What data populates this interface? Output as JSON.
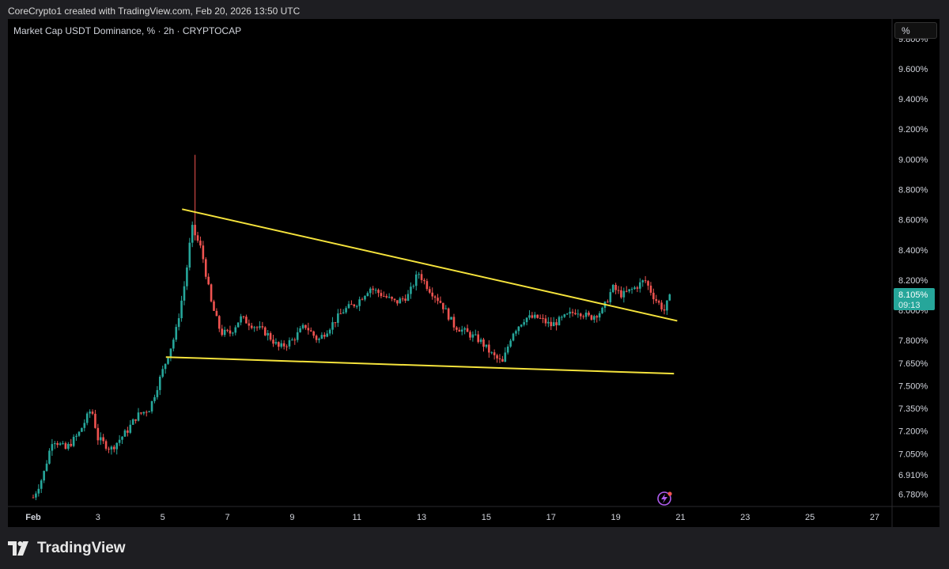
{
  "caption": "CoreCrypto1 created with TradingView.com, Feb 20, 2026 13:50 UTC",
  "symbol_title": "Market Cap USDT Dominance, % · 2h · CRYPTOCAP",
  "unit_button": "%",
  "brand": "TradingView",
  "icons": [
    "tradingview-logo-icon",
    "lightning-icon"
  ],
  "colors": {
    "up": "#26a69a",
    "down": "#ef5350",
    "trendline": "#f5e33c",
    "price_tag": "#26a69a",
    "background": "#000000"
  },
  "price_tag": {
    "price": "8.105%",
    "countdown": "09:13"
  },
  "chart_data": {
    "type": "candlestick",
    "title": "Market Cap USDT Dominance, % · 2h · CRYPTOCAP",
    "ylabel": "%",
    "ylim": [
      6.7,
      9.93
    ],
    "xlim": [
      1.0,
      28.0
    ],
    "y_ticks": [
      "9.800%",
      "9.600%",
      "9.400%",
      "9.200%",
      "9.000%",
      "8.800%",
      "8.600%",
      "8.400%",
      "8.200%",
      "8.000%",
      "7.800%",
      "7.650%",
      "7.500%",
      "7.350%",
      "7.200%",
      "7.050%",
      "6.910%",
      "6.780%"
    ],
    "y_tick_values": [
      9.8,
      9.6,
      9.4,
      9.2,
      9.0,
      8.8,
      8.6,
      8.4,
      8.2,
      8.0,
      7.8,
      7.65,
      7.5,
      7.35,
      7.2,
      7.05,
      6.91,
      6.78
    ],
    "x_ticks": [
      "Feb",
      "3",
      "5",
      "7",
      "9",
      "11",
      "13",
      "15",
      "17",
      "19",
      "21",
      "23",
      "25",
      "27"
    ],
    "x_tick_values": [
      1,
      3,
      5,
      7,
      9,
      11,
      13,
      15,
      17,
      19,
      21,
      23,
      25,
      27
    ],
    "notable": {
      "spike_high": 9.03,
      "last_price": 8.105
    },
    "trendlines": [
      {
        "name": "upper",
        "start": [
          5.6,
          8.67
        ],
        "end": [
          20.9,
          7.93
        ]
      },
      {
        "name": "lower",
        "start": [
          5.1,
          7.69
        ],
        "end": [
          20.8,
          7.58
        ]
      }
    ],
    "close_path": [
      [
        1.0,
        6.76
      ],
      [
        1.3,
        6.9
      ],
      [
        1.6,
        7.15
      ],
      [
        2.0,
        7.08
      ],
      [
        2.4,
        7.18
      ],
      [
        2.8,
        7.35
      ],
      [
        3.0,
        7.15
      ],
      [
        3.4,
        7.08
      ],
      [
        3.9,
        7.2
      ],
      [
        4.2,
        7.3
      ],
      [
        4.6,
        7.35
      ],
      [
        5.0,
        7.6
      ],
      [
        5.4,
        7.85
      ],
      [
        5.7,
        8.2
      ],
      [
        5.9,
        8.55
      ],
      [
        6.2,
        8.4
      ],
      [
        6.5,
        8.05
      ],
      [
        6.8,
        7.85
      ],
      [
        7.1,
        7.85
      ],
      [
        7.4,
        7.95
      ],
      [
        7.8,
        7.9
      ],
      [
        8.2,
        7.85
      ],
      [
        8.6,
        7.75
      ],
      [
        9.0,
        7.8
      ],
      [
        9.4,
        7.9
      ],
      [
        9.8,
        7.8
      ],
      [
        10.2,
        7.9
      ],
      [
        10.6,
        8.0
      ],
      [
        11.0,
        8.05
      ],
      [
        11.4,
        8.15
      ],
      [
        11.8,
        8.1
      ],
      [
        12.2,
        8.05
      ],
      [
        12.6,
        8.1
      ],
      [
        12.9,
        8.25
      ],
      [
        13.2,
        8.15
      ],
      [
        13.6,
        8.05
      ],
      [
        14.0,
        7.9
      ],
      [
        14.4,
        7.85
      ],
      [
        14.8,
        7.8
      ],
      [
        15.2,
        7.7
      ],
      [
        15.5,
        7.65
      ],
      [
        15.8,
        7.85
      ],
      [
        16.2,
        7.95
      ],
      [
        16.6,
        7.95
      ],
      [
        17.0,
        7.9
      ],
      [
        17.4,
        7.95
      ],
      [
        17.8,
        8.0
      ],
      [
        18.2,
        7.95
      ],
      [
        18.6,
        8.0
      ],
      [
        18.9,
        8.15
      ],
      [
        19.2,
        8.1
      ],
      [
        19.6,
        8.15
      ],
      [
        19.9,
        8.2
      ],
      [
        20.2,
        8.08
      ],
      [
        20.5,
        8.0
      ],
      [
        20.7,
        8.105
      ]
    ]
  }
}
